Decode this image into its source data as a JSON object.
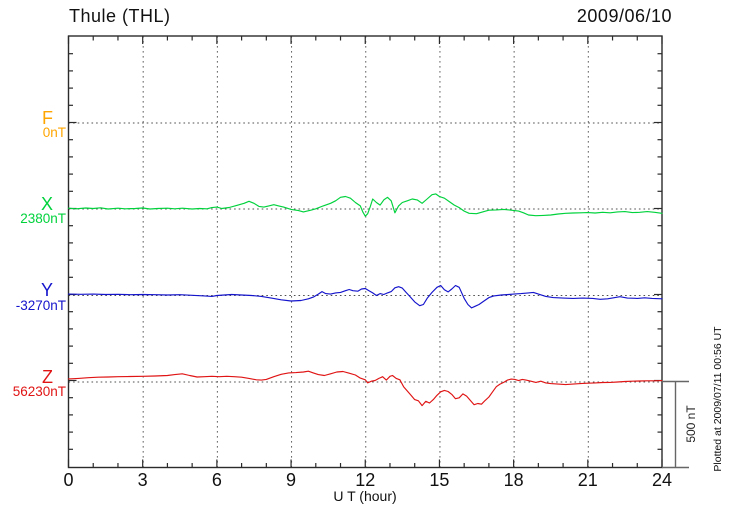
{
  "chart_data": {
    "type": "line",
    "title": "Thule (THL)",
    "station": "Thule",
    "station_code": "THL",
    "date": "2009/06/10",
    "xlabel": "U T (hour)",
    "xlim": [
      0,
      24
    ],
    "x_major_ticks": [
      0,
      3,
      6,
      9,
      12,
      15,
      18,
      21,
      24
    ],
    "x_minor_step_hours": 1,
    "y_minor_tick_nT": 100,
    "y_scale_bar": {
      "label": "500 nT",
      "nT": 500
    },
    "grid": {
      "vertical_dotted_at_hours": [
        3,
        6,
        9,
        12,
        15,
        18,
        21
      ],
      "horizontal_dotted_at_baselines": true
    },
    "plotted_note": "Plotted at 2009/07/11 00:56 UT",
    "series": [
      {
        "name": "F",
        "baseline_label": "0nT",
        "color": "#FFA500",
        "has_trace": false,
        "points": []
      },
      {
        "name": "X",
        "baseline_label": "2380nT",
        "color": "#00D23C",
        "has_trace": true,
        "points": [
          [
            0,
            2
          ],
          [
            0.3,
            -2
          ],
          [
            0.7,
            3
          ],
          [
            1,
            0
          ],
          [
            1.3,
            4
          ],
          [
            1.6,
            -3
          ],
          [
            2,
            2
          ],
          [
            2.3,
            -2
          ],
          [
            2.7,
            0
          ],
          [
            3,
            3
          ],
          [
            3.3,
            -3
          ],
          [
            3.6,
            0
          ],
          [
            4,
            2
          ],
          [
            4.3,
            -2
          ],
          [
            4.6,
            2
          ],
          [
            5,
            -3
          ],
          [
            5.3,
            0
          ],
          [
            5.6,
            -2
          ],
          [
            5.8,
            5
          ],
          [
            6,
            8
          ],
          [
            6.2,
            0
          ],
          [
            6.5,
            6
          ],
          [
            6.8,
            18
          ],
          [
            7.1,
            30
          ],
          [
            7.3,
            42
          ],
          [
            7.5,
            30
          ],
          [
            7.7,
            12
          ],
          [
            7.9,
            8
          ],
          [
            8.1,
            15
          ],
          [
            8.3,
            22
          ],
          [
            8.5,
            15
          ],
          [
            8.7,
            8
          ],
          [
            9,
            -5
          ],
          [
            9.3,
            -12
          ],
          [
            9.5,
            -20
          ],
          [
            9.8,
            -10
          ],
          [
            10,
            -2
          ],
          [
            10.3,
            15
          ],
          [
            10.6,
            30
          ],
          [
            10.8,
            45
          ],
          [
            11,
            65
          ],
          [
            11.2,
            70
          ],
          [
            11.4,
            60
          ],
          [
            11.6,
            35
          ],
          [
            11.8,
            15
          ],
          [
            11.9,
            -20
          ],
          [
            12,
            -45
          ],
          [
            12.1,
            -30
          ],
          [
            12.2,
            10
          ],
          [
            12.3,
            55
          ],
          [
            12.45,
            35
          ],
          [
            12.6,
            20
          ],
          [
            12.75,
            50
          ],
          [
            12.9,
            65
          ],
          [
            13.05,
            45
          ],
          [
            13.2,
            -25
          ],
          [
            13.35,
            15
          ],
          [
            13.5,
            35
          ],
          [
            13.7,
            45
          ],
          [
            13.9,
            55
          ],
          [
            14.1,
            50
          ],
          [
            14.3,
            30
          ],
          [
            14.5,
            55
          ],
          [
            14.7,
            80
          ],
          [
            14.85,
            85
          ],
          [
            15,
            70
          ],
          [
            15.2,
            60
          ],
          [
            15.4,
            40
          ],
          [
            15.6,
            20
          ],
          [
            15.8,
            5
          ],
          [
            16,
            -15
          ],
          [
            16.2,
            -28
          ],
          [
            16.5,
            -30
          ],
          [
            16.8,
            -18
          ],
          [
            17,
            -10
          ],
          [
            17.3,
            -8
          ],
          [
            17.6,
            -5
          ],
          [
            17.9,
            -10
          ],
          [
            18.2,
            -15
          ],
          [
            18.4,
            -25
          ],
          [
            18.6,
            -38
          ],
          [
            18.9,
            -42
          ],
          [
            19.2,
            -40
          ],
          [
            19.5,
            -38
          ],
          [
            19.8,
            -32
          ],
          [
            20.1,
            -28
          ],
          [
            20.4,
            -26
          ],
          [
            20.7,
            -25
          ],
          [
            21,
            -24
          ],
          [
            21.3,
            -26
          ],
          [
            21.6,
            -22
          ],
          [
            21.9,
            -25
          ],
          [
            22.2,
            -20
          ],
          [
            22.5,
            -18
          ],
          [
            22.8,
            -24
          ],
          [
            23.1,
            -22
          ],
          [
            23.4,
            -18
          ],
          [
            23.7,
            -22
          ],
          [
            24,
            -28
          ]
        ]
      },
      {
        "name": "Y",
        "baseline_label": "-3270nT",
        "color": "#1414CC",
        "has_trace": true,
        "points": [
          [
            0,
            5
          ],
          [
            0.5,
            4
          ],
          [
            1,
            5
          ],
          [
            1.5,
            3
          ],
          [
            2,
            4
          ],
          [
            2.5,
            2
          ],
          [
            3,
            3
          ],
          [
            3.5,
            2
          ],
          [
            4,
            0
          ],
          [
            4.5,
            2
          ],
          [
            5,
            -2
          ],
          [
            5.5,
            -5
          ],
          [
            5.8,
            -8
          ],
          [
            6,
            -3
          ],
          [
            6.3,
            0
          ],
          [
            6.6,
            3
          ],
          [
            7,
            0
          ],
          [
            7.4,
            -3
          ],
          [
            7.8,
            -8
          ],
          [
            8.2,
            -18
          ],
          [
            8.6,
            -28
          ],
          [
            9,
            -35
          ],
          [
            9.4,
            -32
          ],
          [
            9.7,
            -22
          ],
          [
            9.9,
            -12
          ],
          [
            10.1,
            5
          ],
          [
            10.25,
            20
          ],
          [
            10.4,
            8
          ],
          [
            10.6,
            5
          ],
          [
            10.8,
            12
          ],
          [
            11,
            15
          ],
          [
            11.2,
            25
          ],
          [
            11.35,
            32
          ],
          [
            11.5,
            25
          ],
          [
            11.7,
            22
          ],
          [
            11.85,
            35
          ],
          [
            12,
            38
          ],
          [
            12.15,
            25
          ],
          [
            12.3,
            12
          ],
          [
            12.45,
            -3
          ],
          [
            12.6,
            8
          ],
          [
            12.75,
            3
          ],
          [
            12.9,
            12
          ],
          [
            13.05,
            20
          ],
          [
            13.2,
            42
          ],
          [
            13.35,
            48
          ],
          [
            13.5,
            40
          ],
          [
            13.65,
            15
          ],
          [
            13.8,
            -8
          ],
          [
            14,
            -40
          ],
          [
            14.2,
            -62
          ],
          [
            14.35,
            -55
          ],
          [
            14.5,
            -20
          ],
          [
            14.7,
            15
          ],
          [
            14.9,
            45
          ],
          [
            15.05,
            55
          ],
          [
            15.2,
            30
          ],
          [
            15.35,
            18
          ],
          [
            15.5,
            35
          ],
          [
            15.65,
            55
          ],
          [
            15.8,
            45
          ],
          [
            16,
            -20
          ],
          [
            16.15,
            -55
          ],
          [
            16.3,
            -75
          ],
          [
            16.45,
            -65
          ],
          [
            16.6,
            -55
          ],
          [
            16.8,
            -35
          ],
          [
            17,
            -15
          ],
          [
            17.2,
            -5
          ],
          [
            17.5,
            0
          ],
          [
            17.8,
            3
          ],
          [
            18,
            5
          ],
          [
            18.3,
            8
          ],
          [
            18.6,
            12
          ],
          [
            18.8,
            15
          ],
          [
            19,
            5
          ],
          [
            19.3,
            -8
          ],
          [
            19.6,
            -15
          ],
          [
            20,
            -18
          ],
          [
            20.4,
            -20
          ],
          [
            20.8,
            -18
          ],
          [
            21.2,
            -20
          ],
          [
            21.5,
            -25
          ],
          [
            21.8,
            -22
          ],
          [
            22.1,
            -15
          ],
          [
            22.3,
            -10
          ],
          [
            22.6,
            -18
          ],
          [
            23,
            -20
          ],
          [
            23.3,
            -16
          ],
          [
            23.6,
            -20
          ],
          [
            24,
            -22
          ]
        ]
      },
      {
        "name": "Z",
        "baseline_label": "56230nT",
        "color": "#E01414",
        "has_trace": true,
        "points": [
          [
            0,
            15
          ],
          [
            0.4,
            18
          ],
          [
            0.8,
            22
          ],
          [
            1.2,
            25
          ],
          [
            1.6,
            26
          ],
          [
            2,
            28
          ],
          [
            2.5,
            29
          ],
          [
            3,
            30
          ],
          [
            3.5,
            32
          ],
          [
            4,
            35
          ],
          [
            4.3,
            40
          ],
          [
            4.6,
            45
          ],
          [
            4.9,
            35
          ],
          [
            5.2,
            26
          ],
          [
            5.5,
            28
          ],
          [
            5.8,
            30
          ],
          [
            6.1,
            28
          ],
          [
            6.4,
            30
          ],
          [
            6.7,
            28
          ],
          [
            7,
            25
          ],
          [
            7.3,
            18
          ],
          [
            7.6,
            10
          ],
          [
            7.8,
            8
          ],
          [
            8,
            12
          ],
          [
            8.3,
            28
          ],
          [
            8.6,
            42
          ],
          [
            8.9,
            50
          ],
          [
            9.2,
            52
          ],
          [
            9.5,
            55
          ],
          [
            9.7,
            60
          ],
          [
            9.9,
            50
          ],
          [
            10.1,
            40
          ],
          [
            10.35,
            35
          ],
          [
            10.6,
            45
          ],
          [
            10.85,
            55
          ],
          [
            11.1,
            58
          ],
          [
            11.35,
            48
          ],
          [
            11.6,
            38
          ],
          [
            11.8,
            20
          ],
          [
            12,
            10
          ],
          [
            12.1,
            -8
          ],
          [
            12.25,
            2
          ],
          [
            12.4,
            6
          ],
          [
            12.55,
            18
          ],
          [
            12.7,
            28
          ],
          [
            12.85,
            8
          ],
          [
            13,
            30
          ],
          [
            13.1,
            35
          ],
          [
            13.25,
            18
          ],
          [
            13.4,
            10
          ],
          [
            13.55,
            -30
          ],
          [
            13.7,
            -55
          ],
          [
            13.85,
            -80
          ],
          [
            14,
            -105
          ],
          [
            14.15,
            -112
          ],
          [
            14.3,
            -140
          ],
          [
            14.45,
            -115
          ],
          [
            14.6,
            -125
          ],
          [
            14.75,
            -105
          ],
          [
            14.9,
            -80
          ],
          [
            15.05,
            -60
          ],
          [
            15.2,
            -52
          ],
          [
            15.35,
            -58
          ],
          [
            15.5,
            -75
          ],
          [
            15.65,
            -100
          ],
          [
            15.8,
            -95
          ],
          [
            15.95,
            -72
          ],
          [
            16.1,
            -85
          ],
          [
            16.25,
            -110
          ],
          [
            16.4,
            -135
          ],
          [
            16.55,
            -128
          ],
          [
            16.7,
            -132
          ],
          [
            16.85,
            -110
          ],
          [
            17,
            -90
          ],
          [
            17.15,
            -60
          ],
          [
            17.3,
            -30
          ],
          [
            17.45,
            -15
          ],
          [
            17.6,
            -5
          ],
          [
            17.75,
            8
          ],
          [
            17.9,
            14
          ],
          [
            18.05,
            12
          ],
          [
            18.2,
            5
          ],
          [
            18.35,
            12
          ],
          [
            18.5,
            8
          ],
          [
            18.7,
            2
          ],
          [
            18.9,
            -5
          ],
          [
            19.1,
            2
          ],
          [
            19.3,
            -8
          ],
          [
            19.5,
            -12
          ],
          [
            19.8,
            -15
          ],
          [
            20.1,
            -18
          ],
          [
            20.4,
            -15
          ],
          [
            20.7,
            -12
          ],
          [
            21,
            -10
          ],
          [
            21.3,
            -8
          ],
          [
            21.6,
            -6
          ],
          [
            21.9,
            -5
          ],
          [
            22.2,
            -3
          ],
          [
            22.5,
            0
          ],
          [
            22.8,
            2
          ],
          [
            23.1,
            3
          ],
          [
            23.4,
            4
          ],
          [
            23.7,
            4
          ],
          [
            24,
            5
          ]
        ]
      }
    ]
  }
}
